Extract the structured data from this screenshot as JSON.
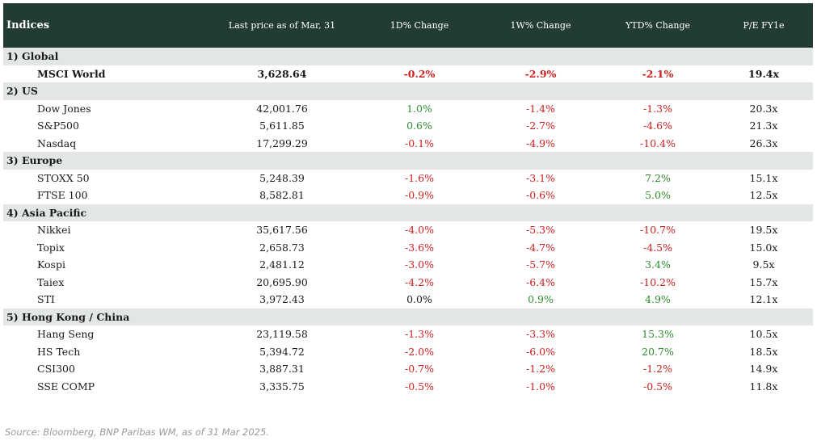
{
  "header": {
    "indices": "Indices",
    "last_price": "Last price as of Mar, 31",
    "d1": "1D% Change",
    "w1": "1W% Change",
    "ytd": "YTD% Change",
    "pe": "P/E FY1e"
  },
  "sections": [
    {
      "label": "1) Global",
      "rows": [
        {
          "name": "MSCI World",
          "price": "3,628.64",
          "d1": "-0.2%",
          "w1": "-2.9%",
          "ytd": "-2.1%",
          "pe": "19.4x",
          "bold": true
        }
      ]
    },
    {
      "label": "2) US",
      "rows": [
        {
          "name": "Dow Jones",
          "price": "42,001.76",
          "d1": "1.0%",
          "w1": "-1.4%",
          "ytd": "-1.3%",
          "pe": "20.3x"
        },
        {
          "name": "S&P500",
          "price": "5,611.85",
          "d1": "0.6%",
          "w1": "-2.7%",
          "ytd": "-4.6%",
          "pe": "21.3x"
        },
        {
          "name": "Nasdaq",
          "price": "17,299.29",
          "d1": "-0.1%",
          "w1": "-4.9%",
          "ytd": "-10.4%",
          "pe": "26.3x"
        }
      ]
    },
    {
      "label": "3) Europe",
      "rows": [
        {
          "name": "STOXX 50",
          "price": "5,248.39",
          "d1": "-1.6%",
          "w1": "-3.1%",
          "ytd": "7.2%",
          "pe": "15.1x"
        },
        {
          "name": "FTSE 100",
          "price": "8,582.81",
          "d1": "-0.9%",
          "w1": "-0.6%",
          "ytd": "5.0%",
          "pe": "12.5x"
        }
      ]
    },
    {
      "label": "4) Asia Pacific",
      "rows": [
        {
          "name": "Nikkei",
          "price": "35,617.56",
          "d1": "-4.0%",
          "w1": "-5.3%",
          "ytd": "-10.7%",
          "pe": "19.5x"
        },
        {
          "name": "Topix",
          "price": "2,658.73",
          "d1": "-3.6%",
          "w1": "-4.7%",
          "ytd": "-4.5%",
          "pe": "15.0x"
        },
        {
          "name": "Kospi",
          "price": "2,481.12",
          "d1": "-3.0%",
          "w1": "-5.7%",
          "ytd": "3.4%",
          "pe": "9.5x"
        },
        {
          "name": "Taiex",
          "price": "20,695.90",
          "d1": "-4.2%",
          "w1": "-6.4%",
          "ytd": "-10.2%",
          "pe": "15.7x"
        },
        {
          "name": "STI",
          "price": "3,972.43",
          "d1": "0.0%",
          "w1": "0.9%",
          "ytd": "4.9%",
          "pe": "12.1x"
        }
      ]
    },
    {
      "label": "5) Hong Kong / China",
      "rows": [
        {
          "name": "Hang Seng",
          "price": "23,119.58",
          "d1": "-1.3%",
          "w1": "-3.3%",
          "ytd": "15.3%",
          "pe": "10.5x"
        },
        {
          "name": "HS Tech",
          "price": "5,394.72",
          "d1": "-2.0%",
          "w1": "-6.0%",
          "ytd": "20.7%",
          "pe": "18.5x"
        },
        {
          "name": "CSI300",
          "price": "3,887.31",
          "d1": "-0.7%",
          "w1": "-1.2%",
          "ytd": "-1.2%",
          "pe": "14.9x"
        },
        {
          "name": "SSE COMP",
          "price": "3,335.75",
          "d1": "-0.5%",
          "w1": "-1.0%",
          "ytd": "-0.5%",
          "pe": "11.8x"
        }
      ]
    }
  ],
  "colors": {
    "header_bg": "#223c33",
    "section_bg": "#e3e7e3",
    "positive": "#2e8b2e",
    "negative": "#cc1f1f"
  },
  "source": "Source: Bloomberg, BNP Paribas WM, as of 31 Mar 2025."
}
